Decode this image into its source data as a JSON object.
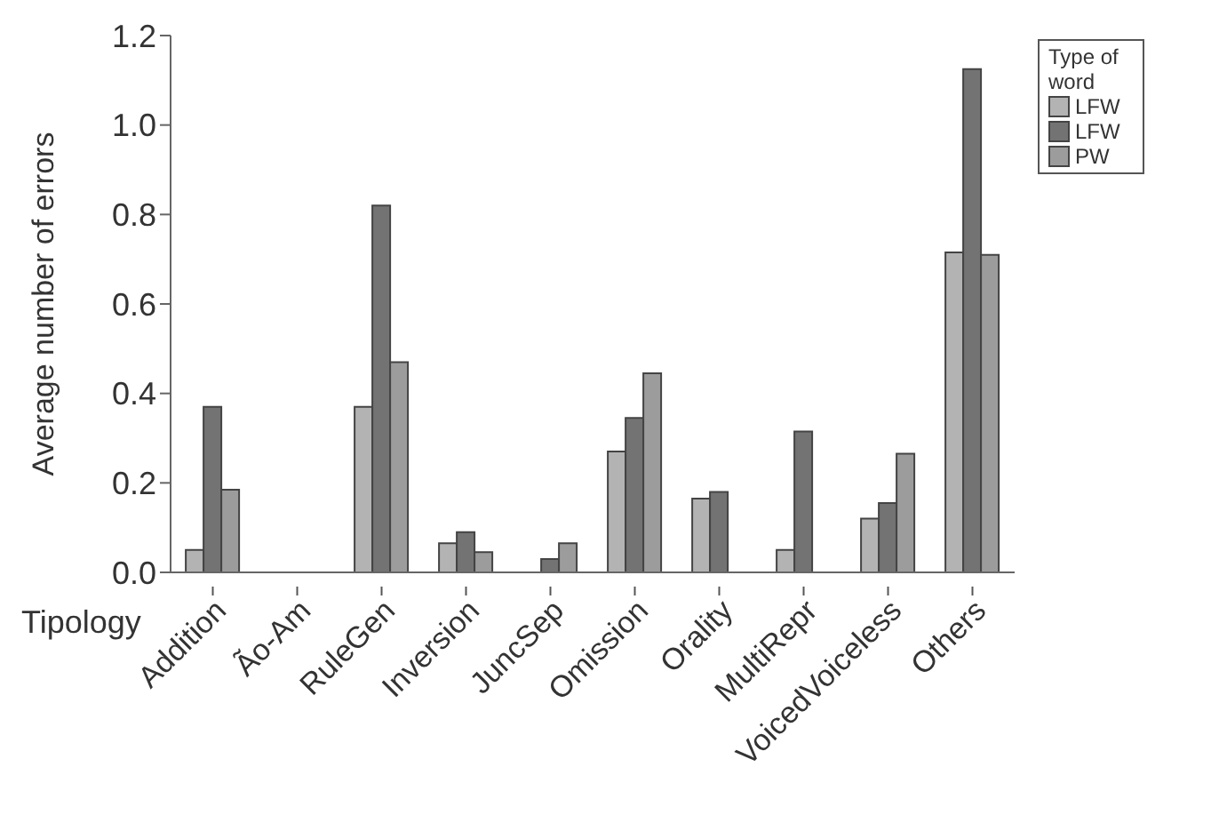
{
  "chart_data": {
    "type": "bar",
    "xlabel": "Tipology",
    "ylabel": "Average number of errors",
    "legend_title": "Type of word",
    "categories": [
      "Addition",
      "Ão-Am",
      "RuleGen",
      "Inversion",
      "JuncSep",
      "Omission",
      "Orality",
      "MultiRepr",
      "VoicedVoiceless",
      "Others"
    ],
    "series": [
      {
        "name": "LFW",
        "color": "#b3b3b3",
        "values": [
          0.05,
          null,
          0.37,
          0.065,
          null,
          0.27,
          0.165,
          0.05,
          0.12,
          0.715
        ]
      },
      {
        "name": "LFW",
        "color": "#737373",
        "values": [
          0.37,
          null,
          0.82,
          0.09,
          0.03,
          0.345,
          0.18,
          0.315,
          0.155,
          1.125
        ]
      },
      {
        "name": "PW",
        "color": "#9c9c9c",
        "values": [
          0.185,
          null,
          0.47,
          0.045,
          0.065,
          0.445,
          null,
          null,
          0.265,
          0.71
        ]
      }
    ],
    "ylim": [
      0,
      1.2
    ],
    "yticks": [
      {
        "value": 0,
        "label": "0.0"
      },
      0.2,
      0.4,
      0.6,
      0.8,
      {
        "value": 1,
        "label": "1.0"
      },
      1.2
    ],
    "legend": "top right",
    "grid": false
  }
}
